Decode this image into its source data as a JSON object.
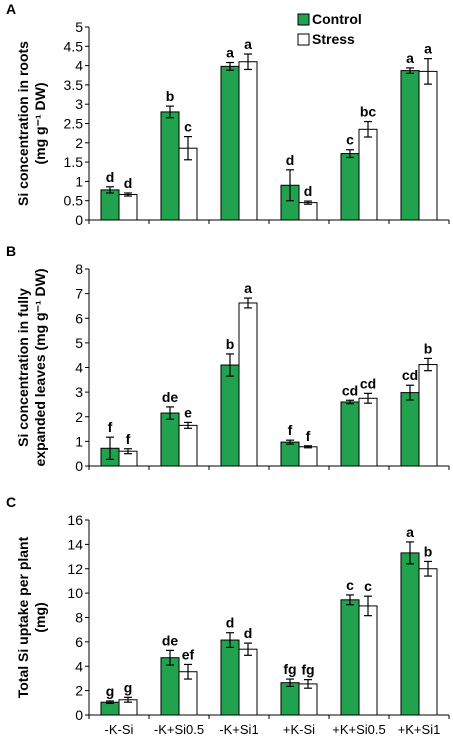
{
  "legend": {
    "control_label": "Control",
    "stress_label": "Stress"
  },
  "colors": {
    "control": "#21a24f",
    "stress": "#ffffff",
    "stroke": "#000000"
  },
  "chart_data": [
    {
      "type": "bar",
      "panel": "A",
      "ylabel_lines": [
        "Si concentration in roots",
        "(mg g⁻¹ DW)"
      ],
      "ylim": [
        0,
        5
      ],
      "yticks": [
        0,
        0.5,
        1,
        1.5,
        2,
        2.5,
        3,
        3.5,
        4,
        4.5,
        5
      ],
      "categories": [
        "-K-Si",
        "-K+Si0.5",
        "-K+Si1",
        "+K-Si",
        "+K+Si0.5",
        "+K+Si1"
      ],
      "series": [
        {
          "name": "Control",
          "values": [
            0.78,
            2.8,
            3.98,
            0.9,
            1.72,
            3.87
          ],
          "errors": [
            0.08,
            0.15,
            0.1,
            0.4,
            0.1,
            0.07
          ],
          "letters": [
            "d",
            "b",
            "a",
            "d",
            "c",
            "a"
          ]
        },
        {
          "name": "Stress",
          "values": [
            0.66,
            1.86,
            4.1,
            0.45,
            2.35,
            3.85
          ],
          "errors": [
            0.04,
            0.3,
            0.2,
            0.04,
            0.2,
            0.33
          ],
          "letters": [
            "d",
            "c",
            "a",
            "d",
            "bc",
            "a"
          ]
        }
      ]
    },
    {
      "type": "bar",
      "panel": "B",
      "ylabel_lines": [
        "Si concentration in fully",
        "expanded leaves (mg g⁻¹ DW)"
      ],
      "ylim": [
        0,
        8
      ],
      "yticks": [
        0,
        1,
        2,
        3,
        4,
        5,
        6,
        7,
        8
      ],
      "categories": [
        "-K-Si",
        "-K+Si0.5",
        "-K+Si1",
        "+K-Si",
        "+K+Si0.5",
        "+K+Si1"
      ],
      "series": [
        {
          "name": "Control",
          "values": [
            0.72,
            2.15,
            4.1,
            0.97,
            2.6,
            2.98
          ],
          "errors": [
            0.45,
            0.25,
            0.45,
            0.08,
            0.07,
            0.3
          ],
          "letters": [
            "f",
            "de",
            "b",
            "f",
            "cd",
            "cd"
          ]
        },
        {
          "name": "Stress",
          "values": [
            0.6,
            1.65,
            6.62,
            0.78,
            2.75,
            4.12
          ],
          "errors": [
            0.1,
            0.12,
            0.2,
            0.04,
            0.2,
            0.25
          ],
          "letters": [
            "f",
            "e",
            "a",
            "f",
            "cd",
            "b"
          ]
        }
      ]
    },
    {
      "type": "bar",
      "panel": "C",
      "ylabel_lines": [
        "Total Si uptake per plant",
        "(mg)"
      ],
      "ylim": [
        0,
        16
      ],
      "yticks": [
        0,
        2,
        4,
        6,
        8,
        10,
        12,
        14,
        16
      ],
      "categories": [
        "-K-Si",
        "-K+Si0.5",
        "-K+Si1",
        "+K-Si",
        "+K+Si0.5",
        "+K+Si1"
      ],
      "series": [
        {
          "name": "Control",
          "values": [
            1.05,
            4.7,
            6.15,
            2.65,
            9.45,
            13.3
          ],
          "errors": [
            0.1,
            0.6,
            0.6,
            0.3,
            0.4,
            0.9
          ],
          "letters": [
            "g",
            "de",
            "d",
            "fg",
            "c",
            "a"
          ]
        },
        {
          "name": "Stress",
          "values": [
            1.25,
            3.55,
            5.4,
            2.55,
            8.95,
            12.0
          ],
          "errors": [
            0.2,
            0.6,
            0.5,
            0.35,
            0.8,
            0.6
          ],
          "letters": [
            "g",
            "ef",
            "d",
            "fg",
            "c",
            "b"
          ]
        }
      ]
    }
  ]
}
